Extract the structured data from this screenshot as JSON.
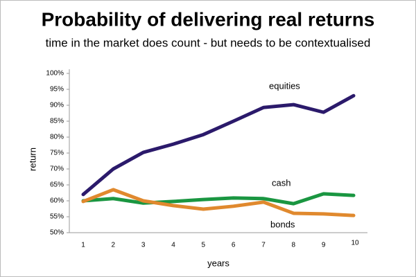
{
  "chart_data": {
    "type": "line",
    "title": "Probability of delivering real returns",
    "subtitle": "time in the market does count - but needs to be contextualised",
    "x_label": "years",
    "y_label": "return",
    "categories": [
      "1",
      "2",
      "3",
      "4",
      "5",
      "6",
      "7",
      "8",
      "9",
      "10"
    ],
    "series": [
      {
        "name": "equities",
        "color": "#2b1a6b",
        "values": [
          62,
          70,
          75.2,
          77.8,
          80.8,
          85,
          89.3,
          90.2,
          87.8,
          93
        ]
      },
      {
        "name": "cash",
        "color": "#1a9641",
        "values": [
          60,
          60.7,
          59.3,
          59.8,
          60.4,
          60.9,
          60.7,
          59.1,
          62.2,
          61.7
        ]
      },
      {
        "name": "bonds",
        "color": "#e0892e",
        "values": [
          59.8,
          63.5,
          60,
          58.5,
          57.4,
          58.3,
          59.6,
          56.1,
          55.9,
          55.4
        ]
      }
    ],
    "ylim": [
      50,
      100
    ],
    "yticks": [
      {
        "value": 50,
        "label": "50%"
      },
      {
        "value": 55,
        "label": "55%"
      },
      {
        "value": 60,
        "label": "60%"
      },
      {
        "value": 65,
        "label": "65%"
      },
      {
        "value": 70,
        "label": "70%"
      },
      {
        "value": 75,
        "label": "75%"
      },
      {
        "value": 80,
        "label": "80%"
      },
      {
        "value": 85,
        "label": "85%"
      },
      {
        "value": 90,
        "label": "90%"
      },
      {
        "value": 95,
        "label": "95%"
      },
      {
        "value": 100,
        "label": "100%"
      }
    ],
    "grid": false
  }
}
